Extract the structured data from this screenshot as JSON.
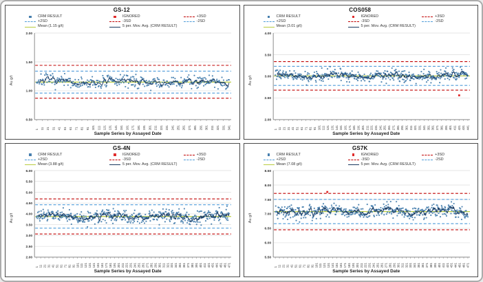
{
  "axis": {
    "y_label": "Au g/t",
    "x_label": "Sample Series by Assayed Date"
  },
  "legend": {
    "crm": "CRM RESULT",
    "ignored": "IGNORED",
    "p3sd": "+3SD",
    "p2sd": "+2SD",
    "m3sd": "-3SD",
    "m2sd": "-2SD",
    "mov_avg": "5 per. Mov. Avg. (CRM RESULT)"
  },
  "colors": {
    "crm_point": "#477fae",
    "mov_avg": "#17365d",
    "sd3": "#c00000",
    "sd2": "#4f9bd9",
    "mean": "#b9cc3e",
    "ignored": "#e02b2b",
    "grid": "#dcdcdc",
    "axis": "#8c8c8c",
    "tick_text": "#333333"
  },
  "chart_data": [
    {
      "type": "scatter",
      "subtype": "qc-control-chart",
      "title": "GS-12",
      "mean_label": "Mean (1.15 g/t)",
      "ylabel": "Au g/t",
      "xlabel": "Sample Series by Assayed Date",
      "ylim": [
        0.5,
        2.0
      ],
      "yticks": [
        "2.00",
        "1.50",
        "1.00",
        "0.50"
      ],
      "mean": 1.15,
      "sd": 0.095,
      "control_lines": {
        "plus_3sd": 1.44,
        "plus_2sd": 1.34,
        "minus_2sd": 0.96,
        "minus_3sd": 0.87
      },
      "n_points": 350,
      "seed": 7,
      "ignored_points": [],
      "legend_position": "top",
      "grid": true,
      "xticks": [
        "1",
        "11",
        "21",
        "31",
        "41",
        "51",
        "61",
        "71",
        "81",
        "91",
        "101",
        "111",
        "121",
        "131",
        "141",
        "151",
        "161",
        "171",
        "181",
        "191",
        "201",
        "211",
        "221",
        "231",
        "241",
        "251",
        "261",
        "271",
        "281",
        "291",
        "301",
        "311",
        "321",
        "331",
        "341"
      ]
    },
    {
      "type": "scatter",
      "subtype": "qc-control-chart",
      "title": "COS058",
      "mean_label": "Mean (3.01 g/t)",
      "ylabel": "Au g/t",
      "xlabel": "Sample Series by Assayed Date",
      "ylim": [
        2.0,
        4.0
      ],
      "yticks": [
        "4.00",
        "3.50",
        "3.00",
        "2.50",
        "2.00"
      ],
      "mean": 3.01,
      "sd": 0.11,
      "control_lines": {
        "plus_3sd": 3.34,
        "plus_2sd": 3.23,
        "minus_2sd": 2.79,
        "minus_3sd": 2.68
      },
      "n_points": 440,
      "seed": 58,
      "ignored_points": [
        {
          "frac": 0.955,
          "value": 2.56
        }
      ],
      "legend_position": "top",
      "grid": true,
      "xticks": [
        "1",
        "11",
        "21",
        "31",
        "41",
        "51",
        "61",
        "71",
        "81",
        "91",
        "101",
        "111",
        "121",
        "131",
        "141",
        "151",
        "161",
        "171",
        "181",
        "191",
        "201",
        "211",
        "221",
        "231",
        "241",
        "251",
        "261",
        "271",
        "281",
        "291",
        "301",
        "311",
        "321",
        "331",
        "341",
        "351",
        "361",
        "371",
        "381",
        "391",
        "401",
        "411",
        "421",
        "431",
        "441"
      ]
    },
    {
      "type": "scatter",
      "subtype": "qc-control-chart",
      "title": "GS-4N",
      "mean_label": "Mean (3.88 g/t)",
      "ylabel": "Au g/t",
      "xlabel": "Sample Series by Assayed Date",
      "ylim": [
        2.0,
        6.0
      ],
      "yticks": [
        "6.00",
        "5.50",
        "5.00",
        "4.50",
        "4.00",
        "3.50",
        "3.00",
        "2.50",
        "2.00"
      ],
      "mean": 3.88,
      "sd": 0.27,
      "control_lines": {
        "plus_3sd": 4.69,
        "plus_2sd": 4.42,
        "minus_2sd": 3.34,
        "minus_3sd": 3.07
      },
      "n_points": 470,
      "seed": 44,
      "ignored_points": [],
      "legend_position": "top",
      "grid": true,
      "xticks": [
        "1",
        "11",
        "21",
        "31",
        "41",
        "51",
        "61",
        "71",
        "81",
        "91",
        "101",
        "111",
        "121",
        "131",
        "141",
        "151",
        "161",
        "171",
        "181",
        "191",
        "201",
        "211",
        "221",
        "231",
        "241",
        "251",
        "261",
        "271",
        "281",
        "291",
        "301",
        "311",
        "321",
        "331",
        "341",
        "351",
        "361",
        "371",
        "381",
        "391",
        "401",
        "411",
        "421",
        "431",
        "441",
        "451",
        "461",
        "471"
      ]
    },
    {
      "type": "scatter",
      "subtype": "qc-control-chart",
      "title": "GS7K",
      "mean_label": "Mean (7.08 g/t)",
      "ylabel": "Au g/t",
      "xlabel": "Sample Series by Assayed Date",
      "ylim": [
        5.5,
        8.5
      ],
      "yticks": [
        "8.50",
        "8.00",
        "7.50",
        "7.00",
        "6.50",
        "6.00",
        "5.50"
      ],
      "mean": 7.08,
      "sd": 0.21,
      "control_lines": {
        "plus_3sd": 7.71,
        "plus_2sd": 7.5,
        "minus_2sd": 6.66,
        "minus_3sd": 6.45
      },
      "n_points": 470,
      "seed": 77,
      "ignored_points": [
        {
          "frac": 0.27,
          "value": 7.76
        }
      ],
      "legend_position": "top",
      "grid": true,
      "xticks": [
        "1",
        "11",
        "21",
        "31",
        "41",
        "51",
        "61",
        "71",
        "81",
        "91",
        "101",
        "111",
        "121",
        "131",
        "141",
        "151",
        "161",
        "171",
        "181",
        "191",
        "201",
        "211",
        "221",
        "231",
        "241",
        "251",
        "261",
        "271",
        "281",
        "291",
        "301",
        "311",
        "321",
        "331",
        "341",
        "351",
        "361",
        "371",
        "381",
        "391",
        "401",
        "411",
        "421",
        "431",
        "441",
        "451",
        "461",
        "471"
      ]
    }
  ]
}
